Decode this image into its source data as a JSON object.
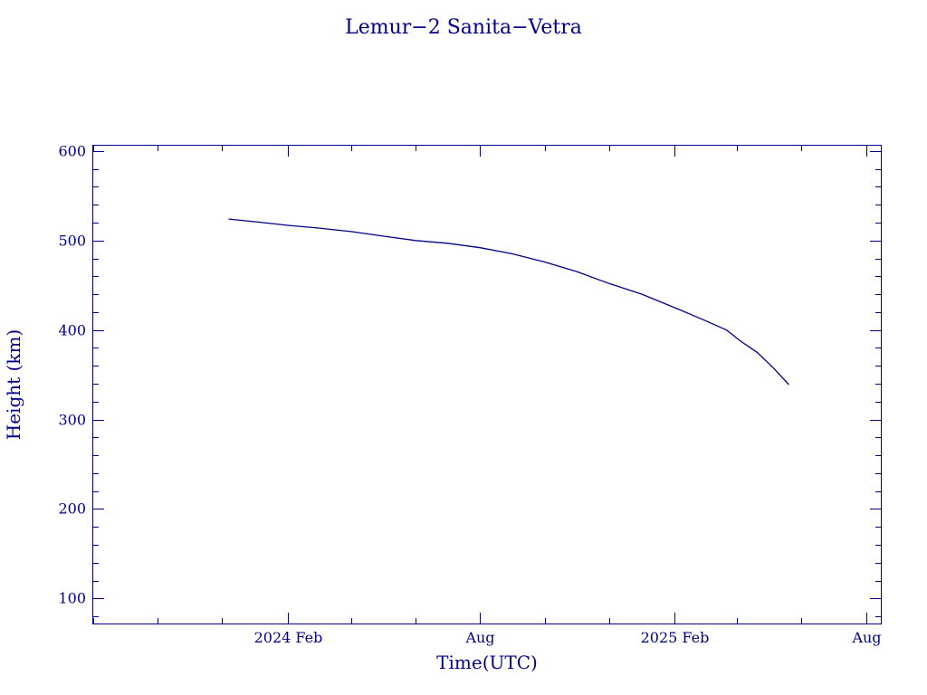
{
  "chart_data": {
    "type": "line",
    "title": "Lemur−2 Sanita−Vetra",
    "xlabel": "Time(UTC)",
    "ylabel": "Height (km)",
    "x_axis": {
      "type": "date",
      "range": [
        "2023-08-01",
        "2025-08-15"
      ],
      "major_ticks": [
        {
          "date": "2024-02-01",
          "label": "2024 Feb"
        },
        {
          "date": "2024-08-01",
          "label": "Aug"
        },
        {
          "date": "2025-02-01",
          "label": "2025 Feb"
        },
        {
          "date": "2025-08-01",
          "label": "Aug"
        }
      ],
      "minor_tick_interval_months": 2
    },
    "y_axis": {
      "range": [
        72,
        606
      ],
      "major_ticks": [
        100,
        200,
        300,
        400,
        500,
        600
      ],
      "major_tick_labels": [
        "100",
        "200",
        "300",
        "400",
        "500",
        "600"
      ],
      "minor_tick_interval": 20
    },
    "grid": false,
    "legend": "none",
    "series": [
      {
        "color": "#00008b",
        "points": [
          {
            "x": "2023-12-07",
            "y": 524
          },
          {
            "x": "2024-01-01",
            "y": 521
          },
          {
            "x": "2024-02-01",
            "y": 517
          },
          {
            "x": "2024-03-01",
            "y": 514
          },
          {
            "x": "2024-04-01",
            "y": 510
          },
          {
            "x": "2024-05-01",
            "y": 505
          },
          {
            "x": "2024-06-01",
            "y": 500
          },
          {
            "x": "2024-07-01",
            "y": 497
          },
          {
            "x": "2024-08-01",
            "y": 492
          },
          {
            "x": "2024-09-01",
            "y": 485
          },
          {
            "x": "2024-10-01",
            "y": 476
          },
          {
            "x": "2024-11-01",
            "y": 465
          },
          {
            "x": "2024-12-01",
            "y": 452
          },
          {
            "x": "2025-01-01",
            "y": 440
          },
          {
            "x": "2025-02-01",
            "y": 425
          },
          {
            "x": "2025-03-01",
            "y": 411
          },
          {
            "x": "2025-03-22",
            "y": 400
          },
          {
            "x": "2025-04-05",
            "y": 387
          },
          {
            "x": "2025-04-20",
            "y": 375
          },
          {
            "x": "2025-05-05",
            "y": 358
          },
          {
            "x": "2025-05-20",
            "y": 339
          }
        ]
      }
    ]
  }
}
